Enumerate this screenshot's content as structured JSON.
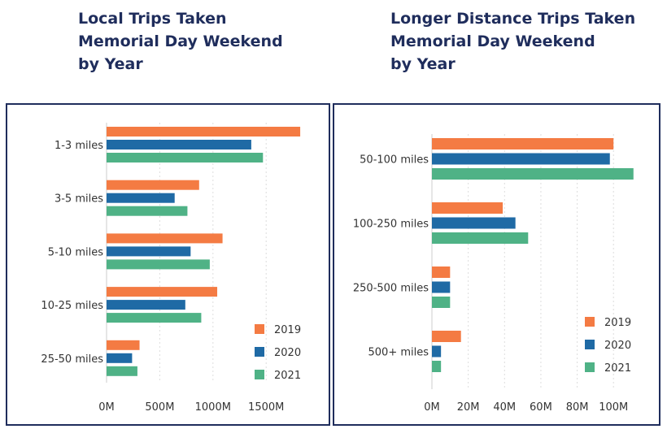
{
  "chart_data": [
    {
      "type": "bar",
      "orientation": "horizontal",
      "title": "Local Trips Taken\nMemorial Day Weekend\nby Year",
      "categories": [
        "1-3 miles",
        "3-5 miles",
        "5-10 miles",
        "10-25 miles",
        "25-50 miles"
      ],
      "series": [
        {
          "name": "2019",
          "color": "#f47b43",
          "values": [
            1820,
            870,
            1090,
            1040,
            310
          ]
        },
        {
          "name": "2020",
          "color": "#1f6aa5",
          "values": [
            1360,
            640,
            790,
            740,
            240
          ]
        },
        {
          "name": "2021",
          "color": "#4fb286",
          "values": [
            1470,
            760,
            970,
            890,
            290
          ]
        }
      ],
      "xticks": [
        0,
        500,
        1000,
        1500
      ],
      "xtick_labels": [
        "0M",
        "500M",
        "1000M",
        "1500M"
      ],
      "xlim": [
        0,
        1850
      ],
      "grid": true,
      "legend": "bottom-right"
    },
    {
      "type": "bar",
      "orientation": "horizontal",
      "title": "Longer Distance Trips Taken\nMemorial Day Weekend\nby Year",
      "categories": [
        "50-100 miles",
        "100-250 miles",
        "250-500 miles",
        "500+ miles"
      ],
      "series": [
        {
          "name": "2019",
          "color": "#f47b43",
          "values": [
            100,
            39,
            10,
            16
          ]
        },
        {
          "name": "2020",
          "color": "#1f6aa5",
          "values": [
            98,
            46,
            10,
            5
          ]
        },
        {
          "name": "2021",
          "color": "#4fb286",
          "values": [
            111,
            53,
            10,
            5
          ]
        }
      ],
      "xticks": [
        0,
        20,
        40,
        60,
        80,
        100
      ],
      "xtick_labels": [
        "0M",
        "20M",
        "40M",
        "60M",
        "80M",
        "100M"
      ],
      "xlim": [
        0,
        112
      ],
      "grid": true,
      "legend": "bottom-right"
    }
  ]
}
